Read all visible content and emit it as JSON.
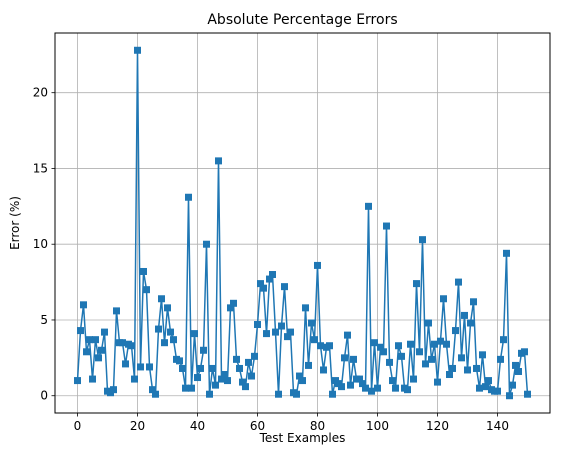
{
  "chart_data": {
    "type": "line",
    "title": "Absolute Percentage Errors",
    "xlabel": "Test Examples",
    "ylabel": "Error (%)",
    "xlim": [
      -7.5,
      157.5
    ],
    "ylim": [
      -1.14,
      23.94
    ],
    "xticks": [
      0,
      20,
      40,
      60,
      80,
      100,
      120,
      140
    ],
    "yticks": [
      0,
      5,
      10,
      15,
      20
    ],
    "grid": true,
    "marker": "square",
    "color": "#1f77b4",
    "series": [
      {
        "x": [
          0,
          1,
          2,
          3,
          4,
          5,
          6,
          7,
          8,
          9,
          10,
          11,
          12,
          13,
          14,
          15,
          16,
          17,
          18,
          19,
          20,
          21,
          22,
          23,
          24,
          25,
          26,
          27,
          28,
          29,
          30,
          31,
          32,
          33,
          34,
          35,
          36,
          37,
          38,
          39,
          40,
          41,
          42,
          43,
          44,
          45,
          46,
          47,
          48,
          49,
          50,
          51,
          52,
          53,
          54,
          55,
          56,
          57,
          58,
          59,
          60,
          61,
          62,
          63,
          64,
          65,
          66,
          67,
          68,
          69,
          70,
          71,
          72,
          73,
          74,
          75,
          76,
          77,
          78,
          79,
          80,
          81,
          82,
          83,
          84,
          85,
          86,
          87,
          88,
          89,
          90,
          91,
          92,
          93,
          94,
          95,
          96,
          97,
          98,
          99,
          100,
          101,
          102,
          103,
          104,
          105,
          106,
          107,
          108,
          109,
          110,
          111,
          112,
          113,
          114,
          115,
          116,
          117,
          118,
          119,
          120,
          121,
          122,
          123,
          124,
          125,
          126,
          127,
          128,
          129,
          130,
          131,
          132,
          133,
          134,
          135,
          136,
          137,
          138,
          139,
          140,
          141,
          142,
          143,
          144,
          145,
          146,
          147,
          148,
          149,
          150
        ],
        "values": [
          1.0,
          4.3,
          6.0,
          2.9,
          3.7,
          1.1,
          3.7,
          2.5,
          3.0,
          4.2,
          0.3,
          0.2,
          0.4,
          5.6,
          3.5,
          3.5,
          2.1,
          3.4,
          3.3,
          1.1,
          22.8,
          1.9,
          8.2,
          7.0,
          1.9,
          0.4,
          0.1,
          4.4,
          6.4,
          3.5,
          5.8,
          4.2,
          3.7,
          2.4,
          2.3,
          1.8,
          0.5,
          13.1,
          0.5,
          4.1,
          1.2,
          1.8,
          3.0,
          10.0,
          0.1,
          1.8,
          0.7,
          15.5,
          1.1,
          1.4,
          1.0,
          5.8,
          6.1,
          2.4,
          1.8,
          0.9,
          0.6,
          2.2,
          1.3,
          2.6,
          4.7,
          7.4,
          7.1,
          4.1,
          7.7,
          8.0,
          4.2,
          0.1,
          4.6,
          7.2,
          3.9,
          4.2,
          0.2,
          0.1,
          1.3,
          1.0,
          5.8,
          2.0,
          4.8,
          3.7,
          8.6,
          3.3,
          1.7,
          3.2,
          3.3,
          0.1,
          1.0,
          0.8,
          0.6,
          2.5,
          4.0,
          0.7,
          2.4,
          1.1,
          1.1,
          0.8,
          0.5,
          12.5,
          0.3,
          3.5,
          0.5,
          3.2,
          2.9,
          11.2,
          2.2,
          1.0,
          0.5,
          3.3,
          2.6,
          0.5,
          0.4,
          3.4,
          1.1,
          7.4,
          2.9,
          10.3,
          2.1,
          4.8,
          2.4,
          3.4,
          0.9,
          3.6,
          6.4,
          3.4,
          1.4,
          1.8,
          4.3,
          7.5,
          2.5,
          5.3,
          1.7,
          4.8,
          6.2,
          1.8,
          0.5,
          2.7,
          0.6,
          1.0,
          0.4,
          0.3,
          0.3,
          2.4,
          3.7,
          9.4,
          0.0,
          0.7,
          2.0,
          1.6,
          2.8,
          2.9,
          0.1
        ]
      }
    ]
  }
}
